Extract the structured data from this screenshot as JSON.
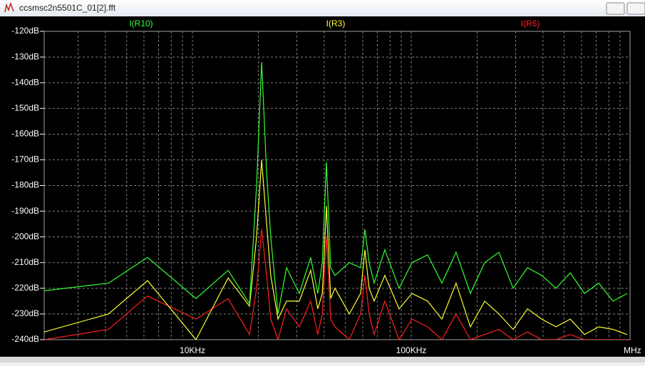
{
  "window": {
    "title": "ccsmsc2n5501C_01[2].fft"
  },
  "chart_data": {
    "type": "line",
    "xscale": "log",
    "grid": true,
    "xlim": [
      2100,
      1000000
    ],
    "ylim": [
      -240,
      -120
    ],
    "yticks": [
      {
        "value": -120,
        "label": "-120dB"
      },
      {
        "value": -130,
        "label": "-130dB"
      },
      {
        "value": -140,
        "label": "-140dB"
      },
      {
        "value": -150,
        "label": "-150dB"
      },
      {
        "value": -160,
        "label": "-160dB"
      },
      {
        "value": -170,
        "label": "-170dB"
      },
      {
        "value": -180,
        "label": "-180dB"
      },
      {
        "value": -190,
        "label": "-190dB"
      },
      {
        "value": -200,
        "label": "-200dB"
      },
      {
        "value": -210,
        "label": "-210dB"
      },
      {
        "value": -220,
        "label": "-220dB"
      },
      {
        "value": -230,
        "label": "-230dB"
      },
      {
        "value": -240,
        "label": "-240dB"
      }
    ],
    "xticks": [
      {
        "value": 10000,
        "label": "10KHz"
      },
      {
        "value": 100000,
        "label": "100KHz"
      },
      {
        "value": 1000000,
        "label": "1MHz"
      }
    ],
    "xminor": [
      3000,
      4000,
      5000,
      6000,
      7000,
      8000,
      9000,
      20000,
      30000,
      40000,
      50000,
      60000,
      70000,
      80000,
      90000,
      200000,
      300000,
      400000,
      500000,
      600000,
      700000,
      800000,
      900000
    ],
    "x": [
      2100,
      4130,
      6230,
      10380,
      14550,
      18230,
      19640,
      20700,
      21830,
      22800,
      24600,
      26900,
      30800,
      34700,
      37400,
      39200,
      40960,
      42850,
      44800,
      52100,
      58700,
      61400,
      64200,
      67700,
      75700,
      88000,
      100700,
      118800,
      138000,
      160300,
      186300,
      216600,
      251500,
      292300,
      339700,
      394700,
      458600,
      532800,
      619000,
      719300,
      835800,
      970800
    ],
    "series": [
      {
        "name": "I(R10)",
        "color": "#33ff33",
        "values": [
          -221,
          -218,
          -208,
          -224,
          -213,
          -226,
          -180,
          -132,
          -175,
          -200,
          -230,
          -212,
          -222,
          -208,
          -222,
          -210,
          -171,
          -212,
          -215,
          -210,
          -212,
          -197,
          -210,
          -218,
          -205,
          -220,
          -210,
          -207,
          -218,
          -206,
          -222,
          -210,
          -206,
          -220,
          -212,
          -215,
          -220,
          -214,
          -222,
          -218,
          -225,
          -222
        ]
      },
      {
        "name": "I(R3)",
        "color": "#ffff33",
        "values": [
          -237,
          -230,
          -217,
          -240,
          -216,
          -227,
          -200,
          -170,
          -195,
          -215,
          -232,
          -225,
          -225,
          -213,
          -228,
          -222,
          -188,
          -224,
          -220,
          -230,
          -222,
          -205,
          -220,
          -225,
          -215,
          -228,
          -222,
          -225,
          -232,
          -218,
          -235,
          -225,
          -230,
          -236,
          -228,
          -232,
          -235,
          -232,
          -238,
          -235,
          -236,
          -238
        ]
      },
      {
        "name": "I(R6)",
        "color": "#ff2020",
        "values": [
          -240,
          -236,
          -223,
          -232,
          -224,
          -238,
          -220,
          -197,
          -215,
          -232,
          -240,
          -228,
          -235,
          -225,
          -238,
          -230,
          -200,
          -232,
          -235,
          -240,
          -230,
          -215,
          -230,
          -238,
          -225,
          -240,
          -232,
          -235,
          -240,
          -230,
          -240,
          -238,
          -236,
          -240,
          -237,
          -240,
          -240,
          -238,
          -240,
          -240,
          -240,
          -240
        ]
      }
    ]
  }
}
